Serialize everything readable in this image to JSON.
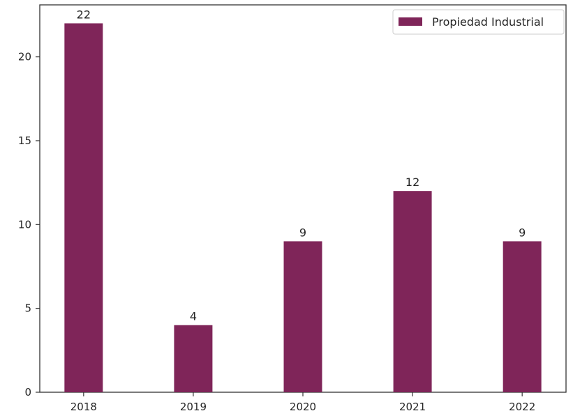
{
  "chart_data": {
    "type": "bar",
    "categories": [
      "2018",
      "2019",
      "2020",
      "2021",
      "2022"
    ],
    "series": [
      {
        "name": "Propiedad Industrial",
        "values": [
          22,
          4,
          9,
          12,
          9
        ]
      }
    ],
    "data_labels": [
      "22",
      "4",
      "9",
      "12",
      "9"
    ],
    "title": "",
    "xlabel": "",
    "ylabel": "",
    "ylim": [
      0,
      23.1
    ],
    "yticks": [
      0,
      5,
      10,
      15,
      20
    ],
    "ytick_labels": [
      "0",
      "5",
      "10",
      "15",
      "20"
    ],
    "grid": false,
    "legend_position": "top-right",
    "colors": {
      "bar": "#7f2559",
      "axis": "#333333",
      "text": "#262626"
    }
  }
}
